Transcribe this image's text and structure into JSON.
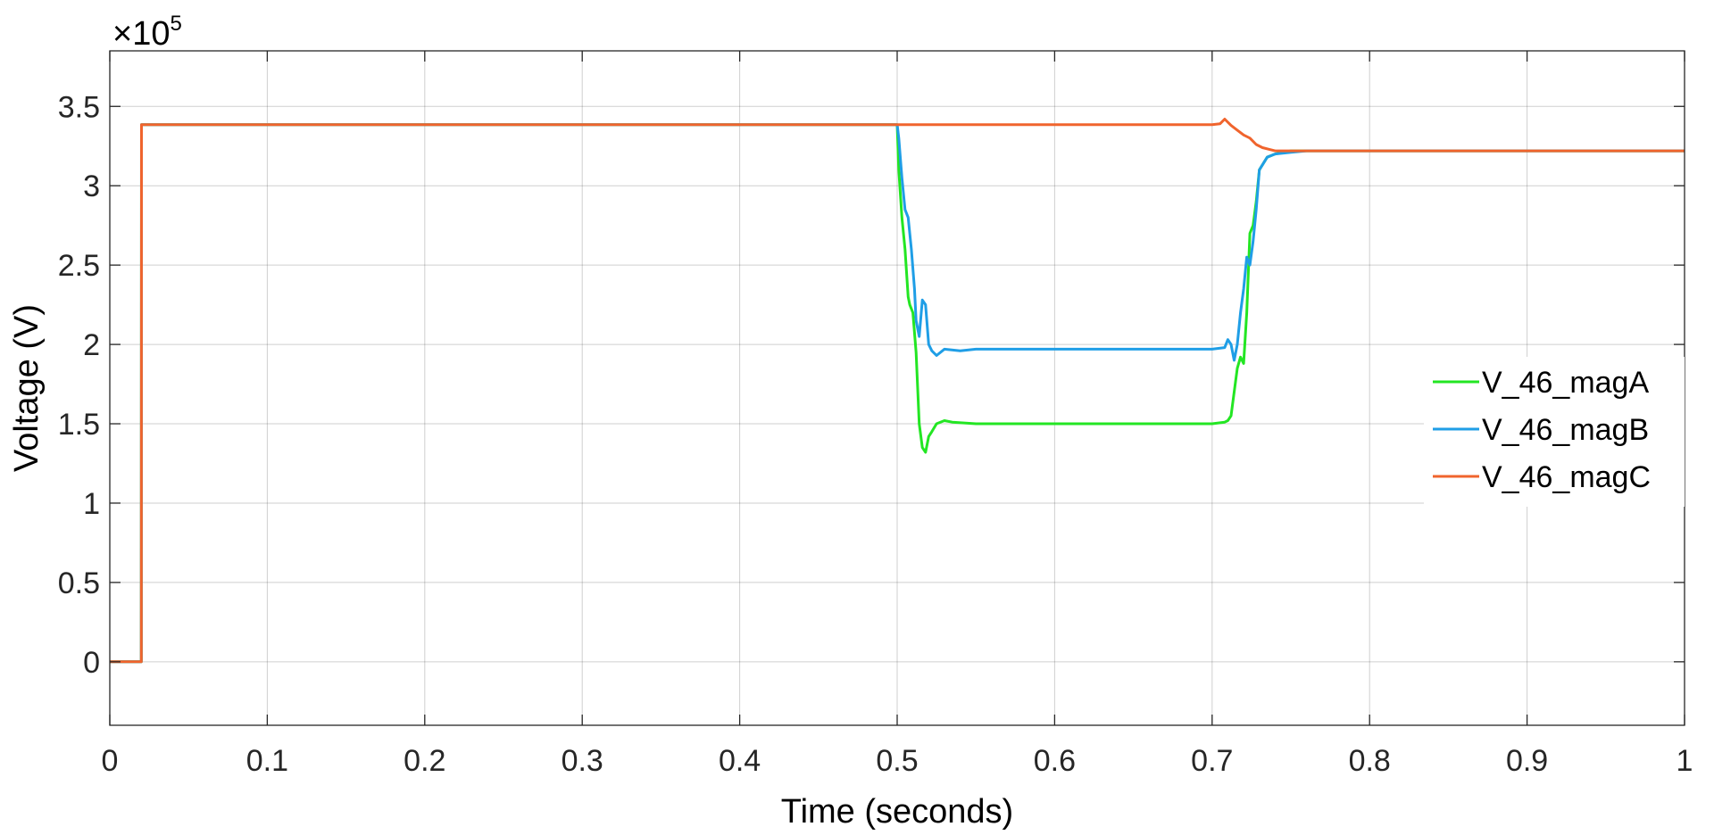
{
  "chart_data": {
    "type": "line",
    "title": "",
    "xlabel": "Time (seconds)",
    "ylabel": "Voltage (V)",
    "y_multiplier_label": "×10",
    "y_multiplier_exp": "5",
    "xlim": [
      0,
      1
    ],
    "ylim": [
      -0.4,
      3.85
    ],
    "x_ticks": [
      0,
      0.1,
      0.2,
      0.3,
      0.4,
      0.5,
      0.6,
      0.7,
      0.8,
      0.9,
      1
    ],
    "x_tick_labels": [
      "0",
      "0.1",
      "0.2",
      "0.3",
      "0.4",
      "0.5",
      "0.6",
      "0.7",
      "0.8",
      "0.9",
      "1"
    ],
    "y_ticks": [
      0,
      0.5,
      1,
      1.5,
      2,
      2.5,
      3,
      3.5
    ],
    "y_tick_labels": [
      "0",
      "0.5",
      "1",
      "1.5",
      "2",
      "2.5",
      "3",
      "3.5"
    ],
    "grid": true,
    "legend_position": "right",
    "series": [
      {
        "name": "V_46_magA",
        "color": "#23e623",
        "x": [
          0,
          0.02,
          0.0201,
          0.5,
          0.501,
          0.503,
          0.505,
          0.507,
          0.508,
          0.51,
          0.512,
          0.514,
          0.516,
          0.518,
          0.52,
          0.522,
          0.525,
          0.53,
          0.535,
          0.55,
          0.6,
          0.65,
          0.7,
          0.708,
          0.71,
          0.712,
          0.714,
          0.716,
          0.718,
          0.72,
          0.722,
          0.724,
          0.726,
          0.728,
          0.73,
          0.735,
          0.74,
          0.75,
          0.76,
          1
        ],
        "y": [
          0,
          0,
          3.385,
          3.385,
          3.1,
          2.8,
          2.6,
          2.3,
          2.25,
          2.2,
          1.95,
          1.5,
          1.35,
          1.32,
          1.42,
          1.45,
          1.5,
          1.52,
          1.51,
          1.5,
          1.5,
          1.5,
          1.5,
          1.51,
          1.52,
          1.55,
          1.7,
          1.85,
          1.92,
          1.88,
          2.2,
          2.7,
          2.75,
          2.9,
          3.1,
          3.18,
          3.2,
          3.22,
          3.22,
          3.22
        ]
      },
      {
        "name": "V_46_magB",
        "color": "#1f9ee6",
        "x": [
          0,
          0.02,
          0.0201,
          0.5,
          0.501,
          0.503,
          0.505,
          0.507,
          0.509,
          0.511,
          0.512,
          0.514,
          0.516,
          0.518,
          0.52,
          0.522,
          0.525,
          0.53,
          0.54,
          0.55,
          0.6,
          0.65,
          0.7,
          0.708,
          0.71,
          0.712,
          0.714,
          0.716,
          0.718,
          0.72,
          0.722,
          0.724,
          0.726,
          0.728,
          0.73,
          0.735,
          0.74,
          0.75,
          0.76,
          1
        ],
        "y": [
          0,
          0,
          3.385,
          3.385,
          3.3,
          3.05,
          2.85,
          2.8,
          2.6,
          2.35,
          2.15,
          2.05,
          2.28,
          2.25,
          2.0,
          1.96,
          1.93,
          1.97,
          1.96,
          1.97,
          1.97,
          1.97,
          1.97,
          1.98,
          2.03,
          2.0,
          1.9,
          2.0,
          2.2,
          2.35,
          2.55,
          2.5,
          2.65,
          2.85,
          3.1,
          3.18,
          3.2,
          3.21,
          3.22,
          3.22
        ]
      },
      {
        "name": "V_46_magC",
        "color": "#f0642d",
        "x": [
          0,
          0.02,
          0.0201,
          0.7,
          0.705,
          0.708,
          0.712,
          0.716,
          0.72,
          0.724,
          0.728,
          0.732,
          0.736,
          0.74,
          0.75,
          0.76,
          1
        ],
        "y": [
          0,
          0,
          3.385,
          3.385,
          3.39,
          3.42,
          3.38,
          3.35,
          3.32,
          3.3,
          3.26,
          3.24,
          3.23,
          3.22,
          3.22,
          3.22,
          3.22
        ]
      }
    ]
  }
}
